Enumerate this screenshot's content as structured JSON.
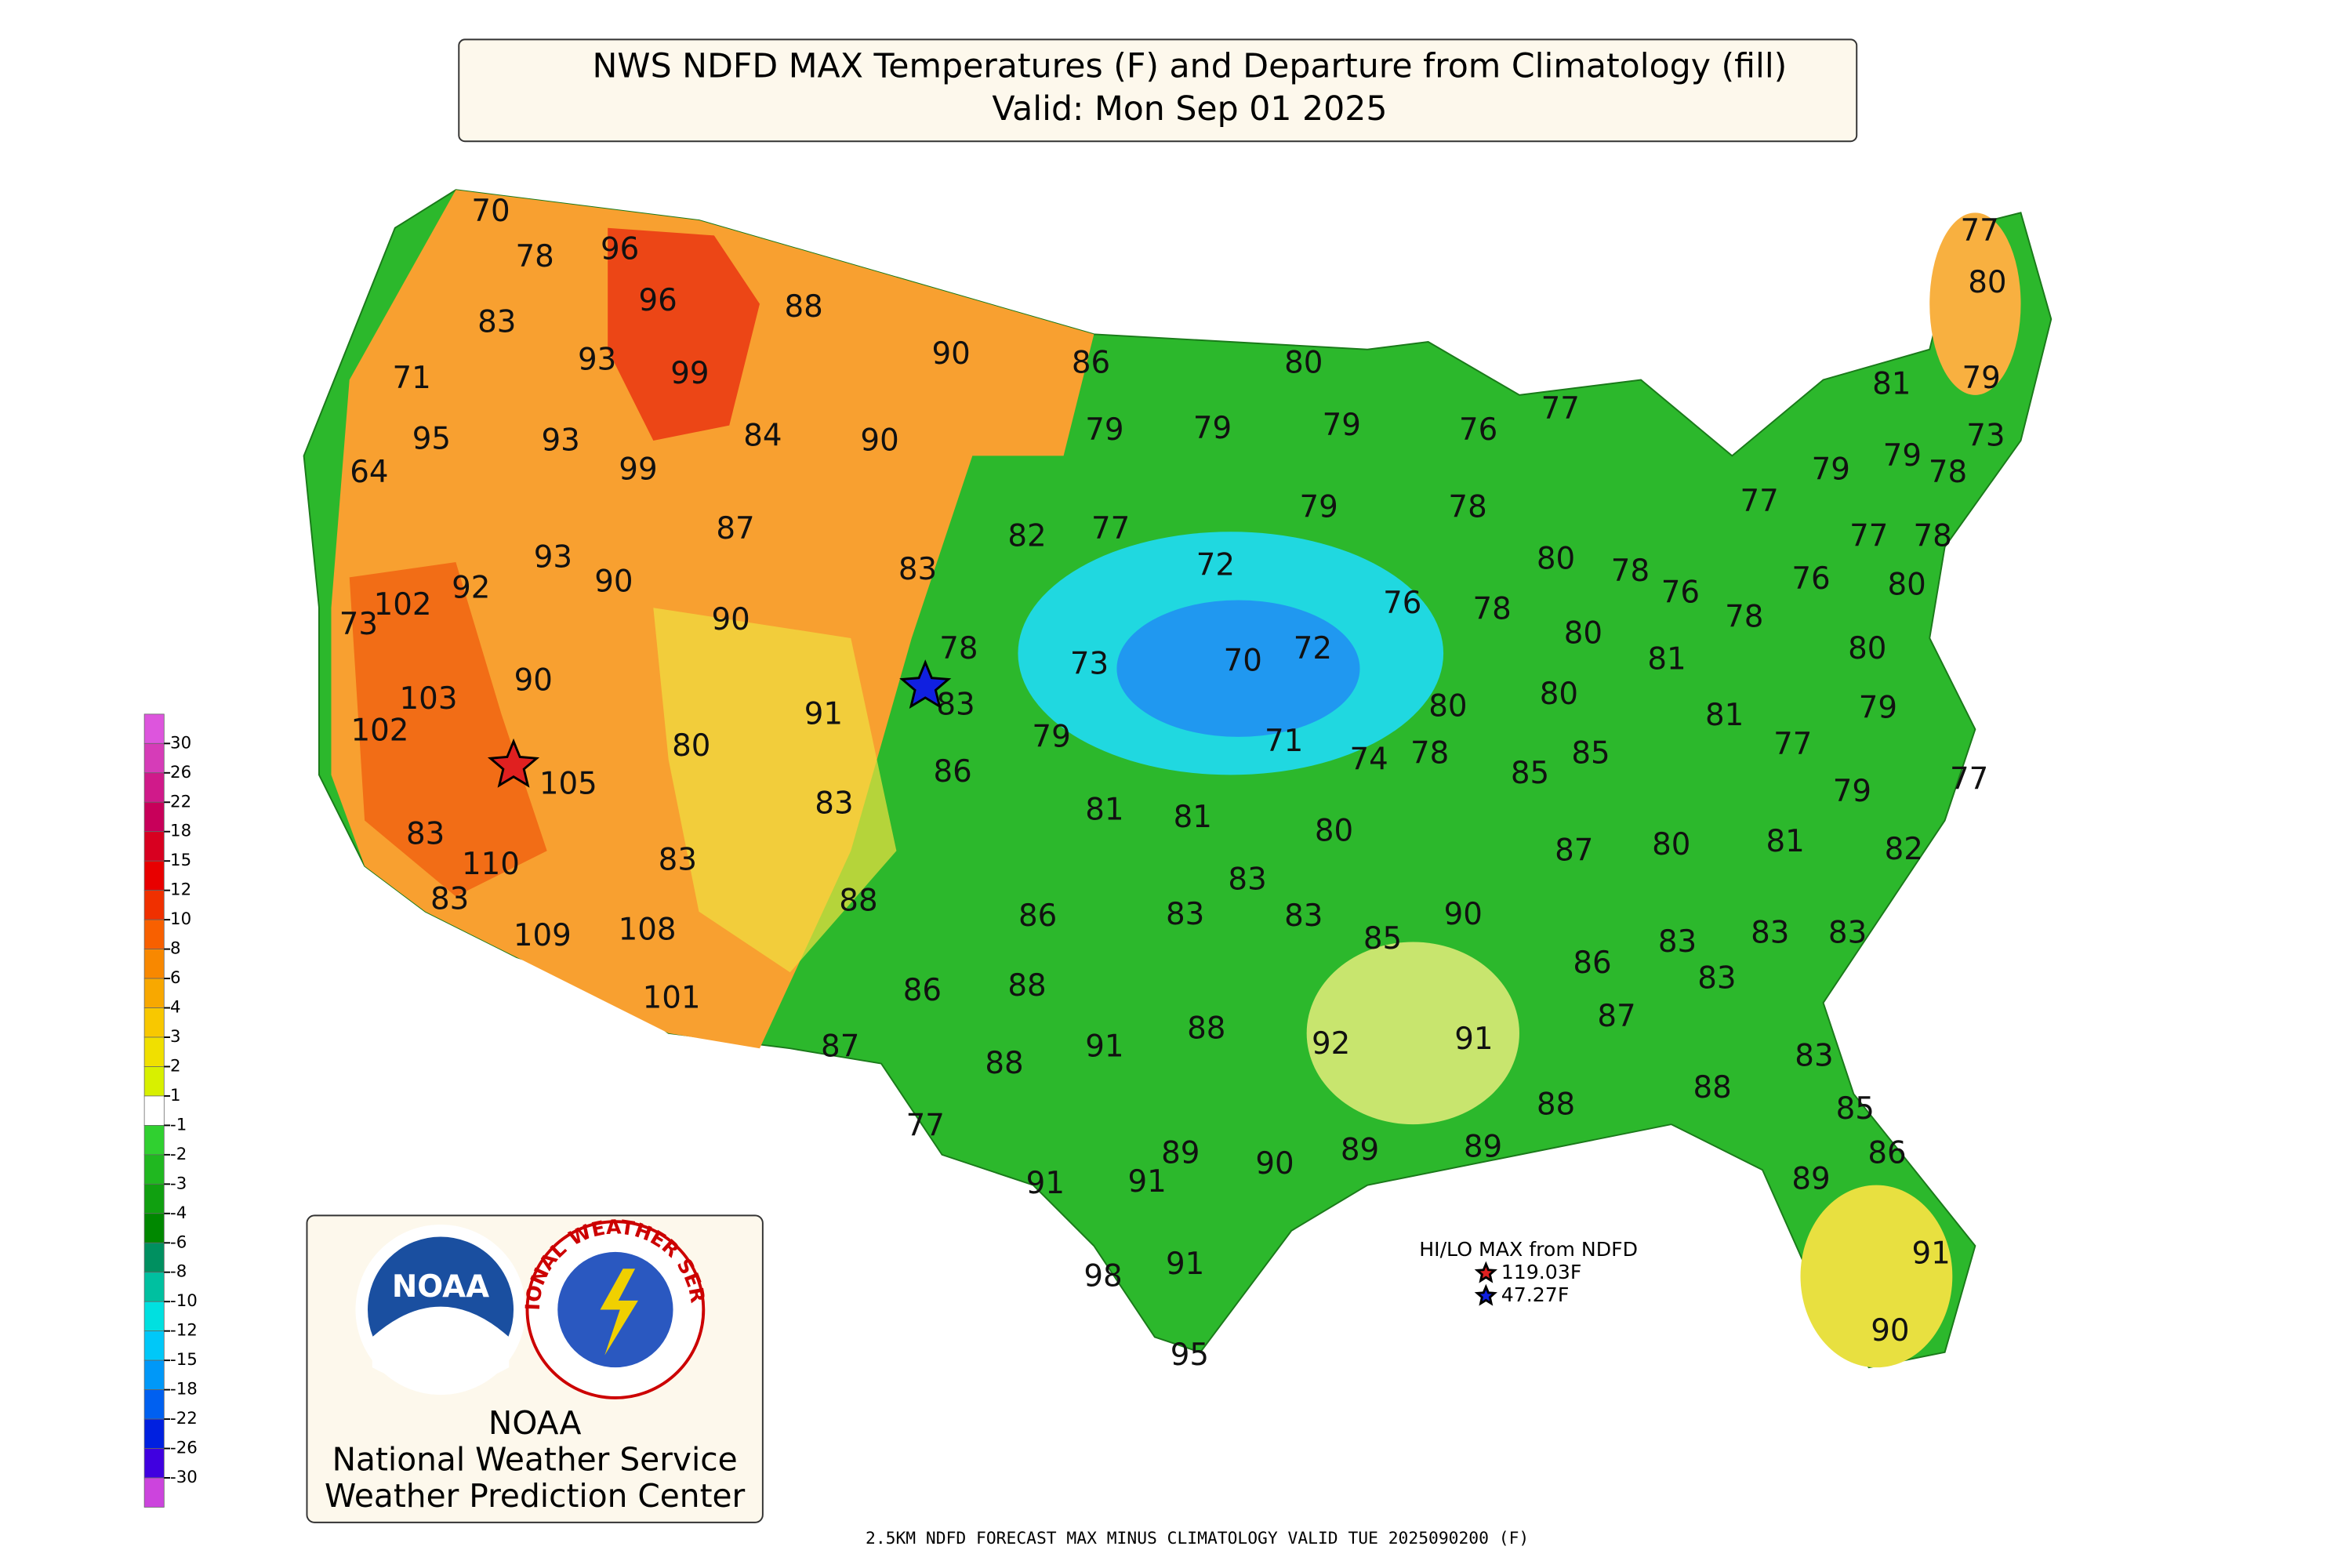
{
  "title": {
    "line1": "NWS NDFD MAX Temperatures (F) and Departure from Climatology (fill)",
    "line2": "Valid: Mon Sep 01 2025"
  },
  "legend": {
    "levels": [
      30,
      26,
      22,
      18,
      15,
      12,
      10,
      8,
      6,
      4,
      3,
      2,
      1,
      -1,
      -2,
      -3,
      -4,
      -6,
      -8,
      -10,
      -12,
      -15,
      -18,
      -22,
      -26,
      -30
    ],
    "colors": [
      "#dd55dd",
      "#d63cb8",
      "#d01a8a",
      "#c8005a",
      "#d80020",
      "#e80000",
      "#f03000",
      "#f86000",
      "#f88800",
      "#f8a800",
      "#f8c800",
      "#f0e000",
      "#d8f000",
      "#ffffff",
      "#30d030",
      "#20b820",
      "#10a010",
      "#008800",
      "#009060",
      "#00c0a0",
      "#00e0e0",
      "#00c8f8",
      "#0098f8",
      "#0060f0",
      "#0020e0",
      "#4000e0",
      "#cc44dd"
    ]
  },
  "labels": [
    70,
    78,
    96,
    96,
    88,
    83,
    93,
    99,
    90,
    86,
    80,
    71,
    95,
    93,
    84,
    90,
    79,
    79,
    79,
    76,
    77,
    81,
    79,
    80,
    77,
    73,
    64,
    99,
    79,
    79,
    78,
    77,
    87,
    82,
    77,
    79,
    78,
    77,
    78,
    93,
    90,
    92,
    83,
    72,
    80,
    78,
    76,
    76,
    80,
    102,
    73,
    90,
    76,
    78,
    80,
    78,
    73,
    70,
    72,
    78,
    81,
    80,
    90,
    83,
    103,
    102,
    91,
    80,
    80,
    81,
    79,
    80,
    79,
    71,
    74,
    78,
    85,
    77,
    105,
    86,
    85,
    79,
    77,
    83,
    81,
    81,
    80,
    87,
    80,
    81,
    82,
    83,
    110,
    83,
    83,
    83,
    109,
    108,
    88,
    86,
    83,
    83,
    85,
    90,
    83,
    83,
    83,
    86,
    83,
    101,
    86,
    88,
    88,
    92,
    91,
    87,
    87,
    88,
    91,
    83,
    77,
    89,
    88,
    88,
    85,
    91,
    91,
    90,
    89,
    89,
    86,
    89,
    98,
    91,
    91,
    90,
    95
  ],
  "hilo": {
    "title": "HI/LO MAX from NDFD",
    "max": "119.03F",
    "min": "47.27F"
  },
  "logo": {
    "noaa": "NOAA",
    "nws": "NATIONAL WEATHER SERVICE",
    "line1": "NOAA",
    "line2": "National Weather Service",
    "line3": "Weather Prediction Center"
  },
  "footer": "2.5KM NDFD FORECAST MAX MINUS CLIMATOLOGY VALID TUE 2025090200 (F)"
}
